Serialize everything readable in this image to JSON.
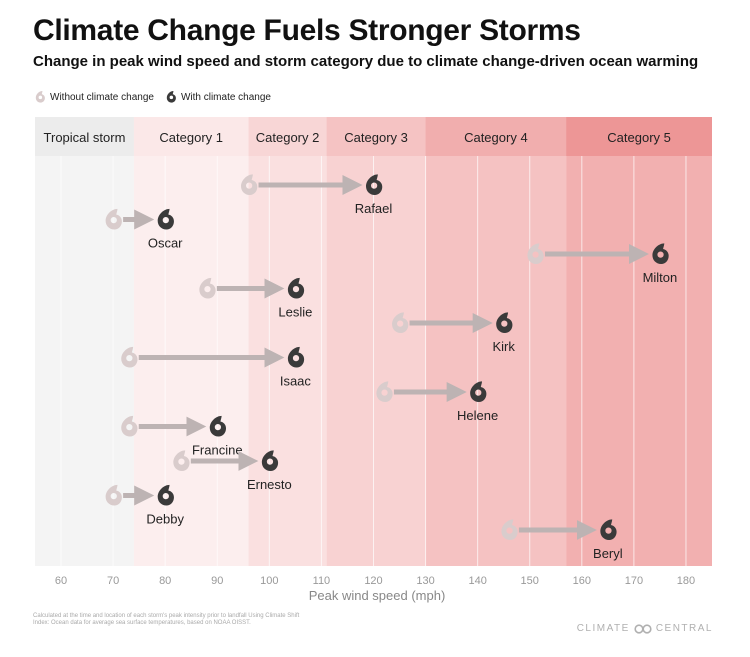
{
  "title": "Climate Change Fuels Stronger Storms",
  "subtitle": "Change in peak wind speed and storm category due to climate change-driven ocean warming",
  "legend": {
    "without": "Without climate change",
    "with": "With climate change"
  },
  "footnote": "Calculated at the time and location of each storm's peak intensity prior to landfall Using Climate Shift Index: Ocean data for average sea surface temperatures, based on NOAA OISST.",
  "brand": {
    "left": "CLIMATE",
    "right": "CENTRAL"
  },
  "colors": {
    "tropical_storm": "#ececec",
    "cat1": "#fbe8e8",
    "cat2": "#f8d6d6",
    "cat3": "#f5c3c3",
    "cat4": "#f1aeae",
    "cat5": "#ed9696",
    "storm_with": "#3a3a3a",
    "storm_without": "#d9cccc",
    "arrow": "#bdb3b3"
  },
  "chart_data": {
    "type": "arrow",
    "xlabel": "Peak wind speed (mph)",
    "xlim": [
      55,
      185
    ],
    "xticks": [
      60,
      70,
      80,
      90,
      100,
      110,
      120,
      130,
      140,
      150,
      160,
      170,
      180
    ],
    "categories": [
      {
        "label": "Tropical storm",
        "from": 55,
        "to": 74
      },
      {
        "label": "Category 1",
        "from": 74,
        "to": 96
      },
      {
        "label": "Category 2",
        "from": 96,
        "to": 111
      },
      {
        "label": "Category 3",
        "from": 111,
        "to": 130
      },
      {
        "label": "Category 4",
        "from": 130,
        "to": 157
      },
      {
        "label": "Category 5",
        "from": 157,
        "to": 185
      }
    ],
    "storms": [
      {
        "name": "Rafael",
        "without": 96,
        "with": 120
      },
      {
        "name": "Oscar",
        "without": 70,
        "with": 80
      },
      {
        "name": "Milton",
        "without": 151,
        "with": 175
      },
      {
        "name": "Leslie",
        "without": 88,
        "with": 105
      },
      {
        "name": "Kirk",
        "without": 125,
        "with": 145
      },
      {
        "name": "Isaac",
        "without": 73,
        "with": 105
      },
      {
        "name": "Helene",
        "without": 122,
        "with": 140
      },
      {
        "name": "Francine",
        "without": 73,
        "with": 90
      },
      {
        "name": "Ernesto",
        "without": 83,
        "with": 100
      },
      {
        "name": "Debby",
        "without": 70,
        "with": 80
      },
      {
        "name": "Beryl",
        "without": 146,
        "with": 165
      }
    ]
  }
}
